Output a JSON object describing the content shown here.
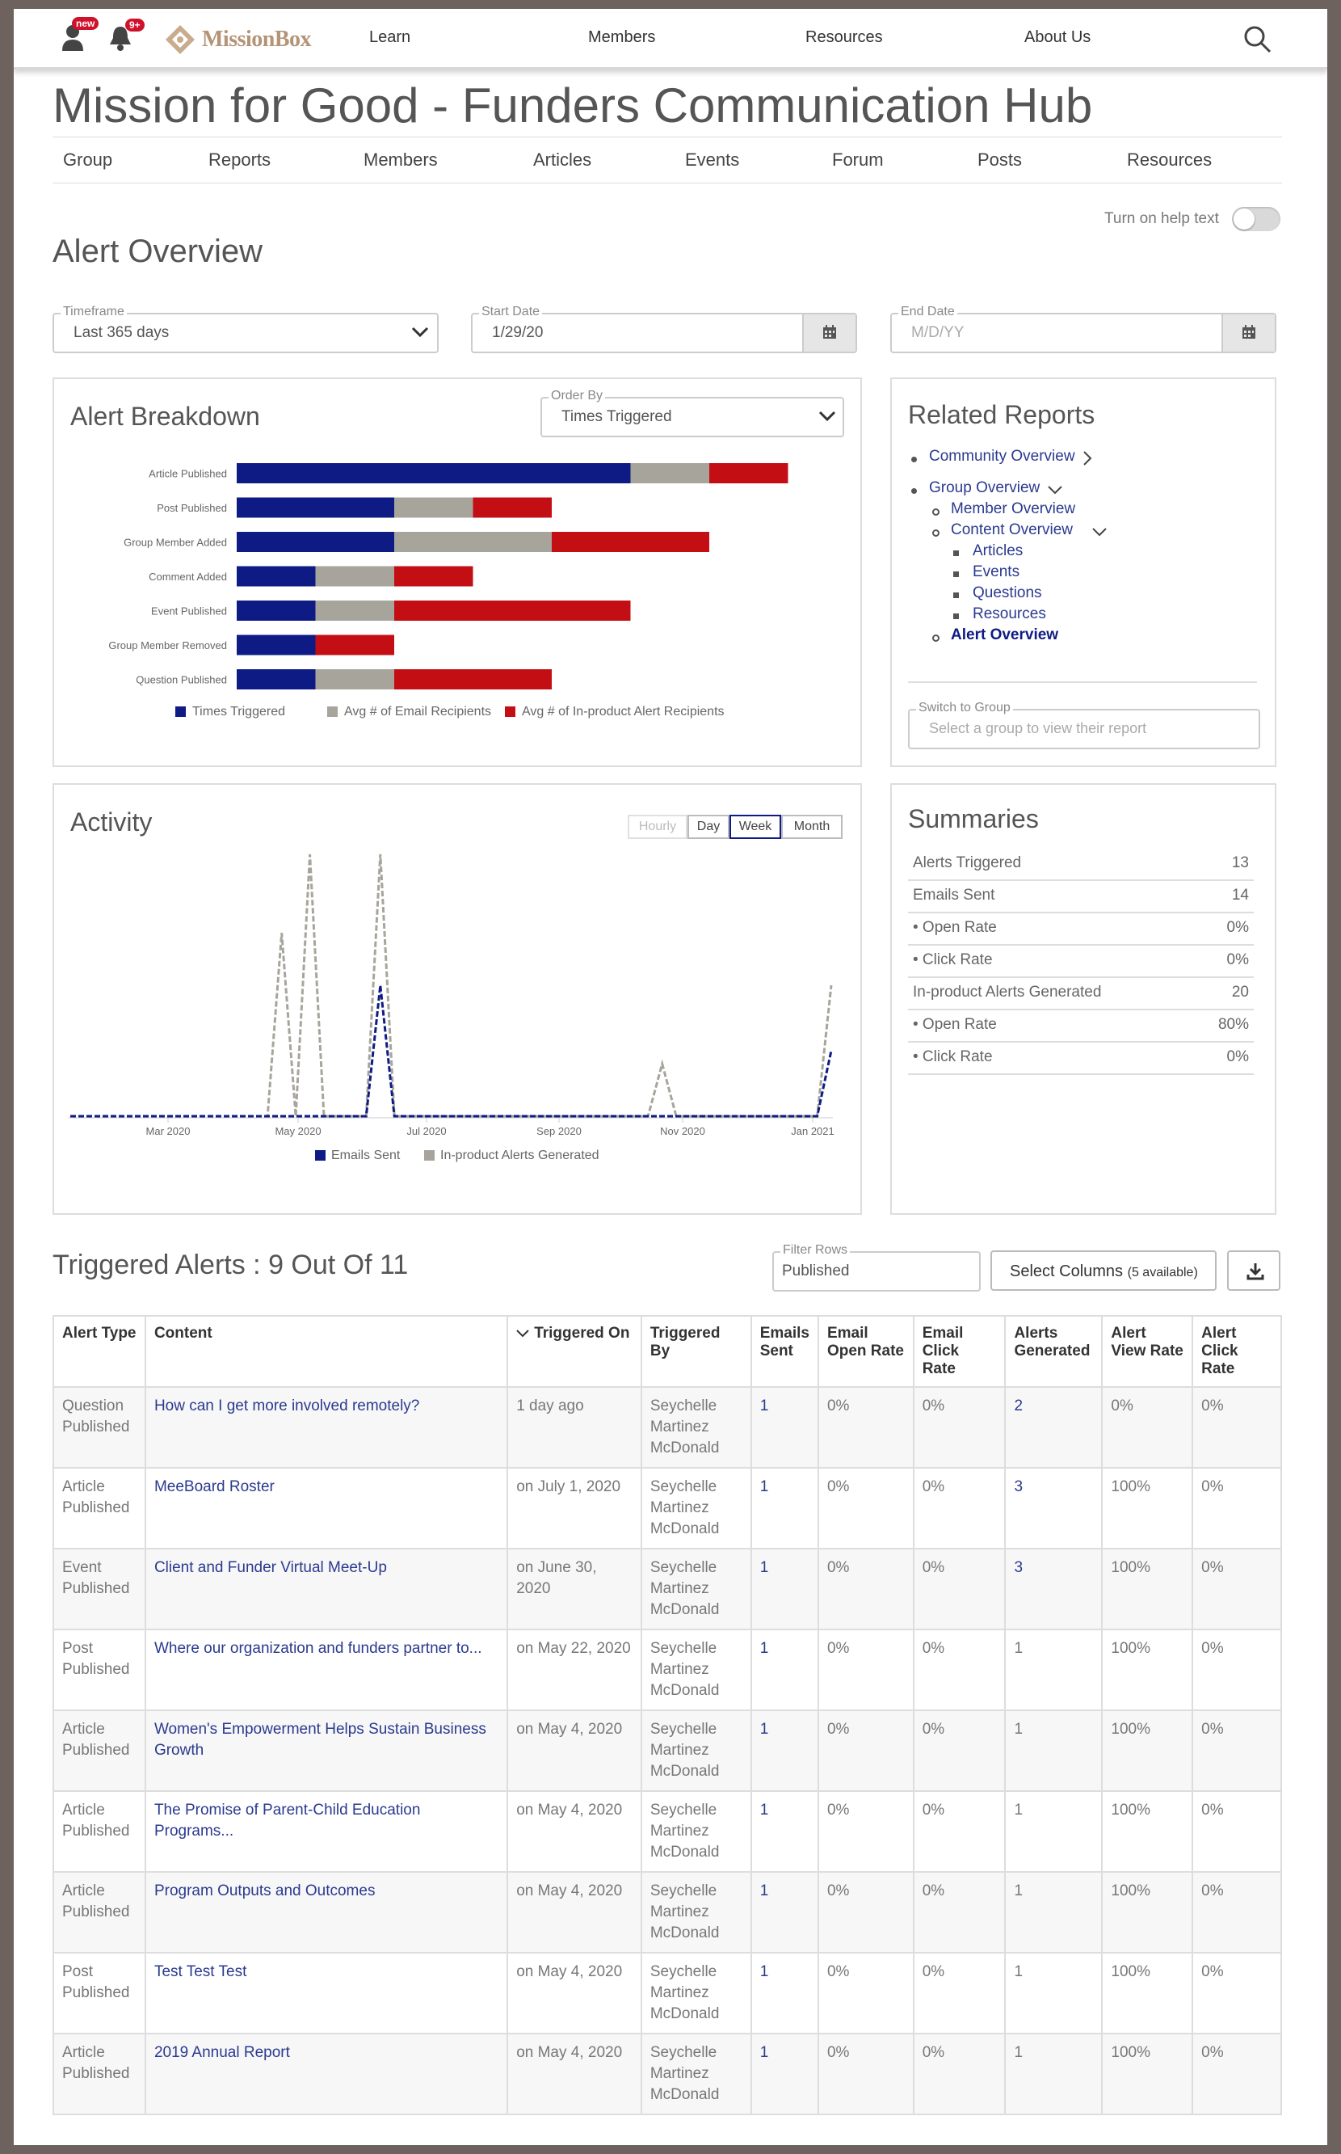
{
  "topbar": {
    "user_badge": "new",
    "bell_badge": "9+",
    "logo_text": "MissionBox",
    "nav": [
      "Learn",
      "Members",
      "Resources",
      "About Us"
    ]
  },
  "page": {
    "title": "Mission for Good - Funders Communication Hub",
    "subnav": [
      "Group",
      "Reports",
      "Members",
      "Articles",
      "Events",
      "Forum",
      "Posts",
      "Resources"
    ],
    "help_text": "Turn on help text",
    "section_title": "Alert Overview"
  },
  "filters": {
    "timeframe": {
      "label": "Timeframe",
      "value": "Last 365 days"
    },
    "start_date": {
      "label": "Start Date",
      "value": "1/29/20"
    },
    "end_date": {
      "label": "End Date",
      "placeholder": "M/D/YY"
    }
  },
  "breakdown": {
    "title": "Alert Breakdown",
    "order_by_label": "Order By",
    "order_by_value": "Times Triggered"
  },
  "related": {
    "title": "Related Reports",
    "items": {
      "community": "Community Overview",
      "group": "Group Overview",
      "member": "Member Overview",
      "content": "Content Overview",
      "articles": "Articles",
      "events": "Events",
      "questions": "Questions",
      "resources": "Resources",
      "alert": "Alert Overview"
    },
    "switch_label": "Switch to Group",
    "switch_placeholder": "Select a group to view their report"
  },
  "activity": {
    "title": "Activity",
    "granularity": [
      "Hourly",
      "Day",
      "Week",
      "Month"
    ],
    "selected": "Week"
  },
  "summaries": {
    "title": "Summaries",
    "rows": [
      {
        "label": "Alerts Triggered",
        "value": "13"
      },
      {
        "label": "Emails Sent",
        "value": "14"
      },
      {
        "label": "• Open Rate",
        "value": "0%"
      },
      {
        "label": "• Click Rate",
        "value": "0%"
      },
      {
        "label": "In-product Alerts Generated",
        "value": "20"
      },
      {
        "label": "• Open Rate",
        "value": "80%"
      },
      {
        "label": "• Click Rate",
        "value": "0%"
      }
    ]
  },
  "triggered": {
    "title": "Triggered Alerts : 9 Out Of 11",
    "filter_label": "Filter Rows",
    "filter_value": "Published",
    "select_columns": "Select Columns",
    "select_columns_note": "(5 available)",
    "columns": [
      "Alert Type",
      "Content",
      "Triggered On",
      "Triggered By",
      "Emails Sent",
      "Email Open Rate",
      "Email Click Rate",
      "Alerts Generated",
      "Alert View Rate",
      "Alert Click Rate"
    ],
    "rows": [
      [
        "Question Published",
        "How can I get more involved remotely?",
        "1 day ago",
        "Seychelle Martinez McDonald",
        "1",
        "0%",
        "0%",
        "2",
        "0%",
        "0%"
      ],
      [
        "Article Published",
        "MeeBoard Roster",
        "on July 1, 2020",
        "Seychelle Martinez McDonald",
        "1",
        "0%",
        "0%",
        "3",
        "100%",
        "0%"
      ],
      [
        "Event Published",
        "Client and Funder Virtual Meet-Up",
        "on June 30, 2020",
        "Seychelle Martinez McDonald",
        "1",
        "0%",
        "0%",
        "3",
        "100%",
        "0%"
      ],
      [
        "Post Published",
        "Where our organization and funders partner to...",
        "on May 22, 2020",
        "Seychelle Martinez McDonald",
        "1",
        "0%",
        "0%",
        "1",
        "100%",
        "0%"
      ],
      [
        "Article Published",
        "Women's Empowerment Helps Sustain Business Growth",
        "on May 4, 2020",
        "Seychelle Martinez McDonald",
        "1",
        "0%",
        "0%",
        "1",
        "100%",
        "0%"
      ],
      [
        "Article Published",
        "The Promise of Parent-Child Education Programs...",
        "on May 4, 2020",
        "Seychelle Martinez McDonald",
        "1",
        "0%",
        "0%",
        "1",
        "100%",
        "0%"
      ],
      [
        "Article Published",
        "Program Outputs and Outcomes",
        "on May 4, 2020",
        "Seychelle Martinez McDonald",
        "1",
        "0%",
        "0%",
        "1",
        "100%",
        "0%"
      ],
      [
        "Post Published",
        "Test Test Test",
        "on May 4, 2020",
        "Seychelle Martinez McDonald",
        "1",
        "0%",
        "0%",
        "1",
        "100%",
        "0%"
      ],
      [
        "Article Published",
        "2019 Annual Report",
        "on May 4, 2020",
        "Seychelle Martinez McDonald",
        "1",
        "0%",
        "0%",
        "1",
        "100%",
        "0%"
      ]
    ]
  },
  "colors": {
    "navy": "#0f1b84",
    "gray": "#a7a59b",
    "red": "#c30f14",
    "link": "#2a3a8f"
  },
  "chart_data": [
    {
      "type": "bar",
      "orientation": "horizontal",
      "stacked": true,
      "categories": [
        "Article Published",
        "Post Published",
        "Group Member Added",
        "Comment Added",
        "Event Published",
        "Group Member Removed",
        "Question Published"
      ],
      "series": [
        {
          "name": "Times Triggered",
          "values": [
            5,
            2,
            2,
            1,
            1,
            1,
            1
          ]
        },
        {
          "name": "Avg # of Email Recipients",
          "values": [
            1,
            1,
            2,
            1,
            1,
            0,
            1
          ]
        },
        {
          "name": "Avg # of In-product Alert Recipients",
          "values": [
            1,
            1,
            2,
            1,
            3,
            1,
            2
          ]
        }
      ],
      "legend": "bottom"
    },
    {
      "type": "line",
      "x_ticks": [
        "Mar 2020",
        "May 2020",
        "Jul 2020",
        "Sep 2020",
        "Nov 2020",
        "Jan 2021"
      ],
      "series": [
        {
          "name": "Emails Sent",
          "values": [
            0,
            0,
            0,
            0,
            0,
            0,
            0,
            0,
            0,
            0,
            0,
            0,
            0,
            0,
            0,
            0,
            0,
            0,
            0,
            0,
            0,
            0,
            1,
            0,
            0,
            0,
            0,
            0,
            0,
            0,
            0,
            0,
            0,
            0,
            0,
            0,
            0,
            0,
            0,
            0,
            0,
            0,
            0,
            0,
            0,
            0,
            0,
            0,
            0,
            0,
            0,
            0,
            0,
            0,
            0.5
          ]
        },
        {
          "name": "In-product Alerts Generated",
          "values": [
            0,
            0,
            0,
            0,
            0,
            0,
            0,
            0,
            0,
            0,
            0,
            0,
            0,
            0,
            0,
            1.4,
            0,
            2,
            0,
            0,
            0,
            0,
            2,
            0,
            0,
            0,
            0,
            0,
            0,
            0,
            0,
            0,
            0,
            0,
            0,
            0,
            0,
            0,
            0,
            0,
            0,
            0,
            0.4,
            0,
            0,
            0,
            0,
            0,
            0,
            0,
            0,
            0,
            0,
            0,
            1
          ]
        }
      ],
      "legend": "bottom"
    }
  ]
}
